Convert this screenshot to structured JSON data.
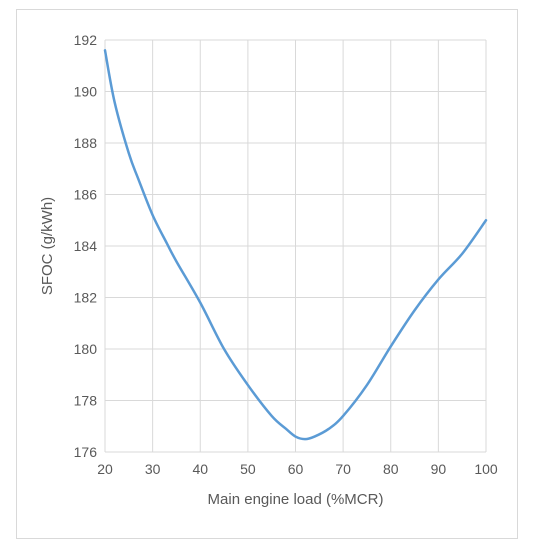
{
  "chart_data": {
    "type": "line",
    "title": "",
    "xlabel": "Main engine load (%MCR)",
    "ylabel": "SFOC (g/kWh)",
    "xlim": [
      20,
      100
    ],
    "ylim": [
      176,
      192
    ],
    "xticks": [
      20,
      30,
      40,
      50,
      60,
      70,
      80,
      90,
      100
    ],
    "yticks": [
      176,
      178,
      180,
      182,
      184,
      186,
      188,
      190,
      192
    ],
    "grid": true,
    "legend": "none",
    "series": [
      {
        "color": "#5b9bd5",
        "x": [
          20,
          22,
          25,
          27,
          30,
          33,
          35,
          40,
          45,
          50,
          55,
          58,
          60,
          62,
          64,
          67,
          70,
          75,
          80,
          85,
          90,
          95,
          100
        ],
        "y": [
          191.6,
          189.6,
          187.6,
          186.6,
          185.2,
          184.1,
          183.4,
          181.8,
          180.0,
          178.6,
          177.4,
          176.9,
          176.6,
          176.5,
          176.6,
          176.9,
          177.4,
          178.6,
          180.1,
          181.5,
          182.7,
          183.7,
          185.0
        ]
      }
    ]
  }
}
